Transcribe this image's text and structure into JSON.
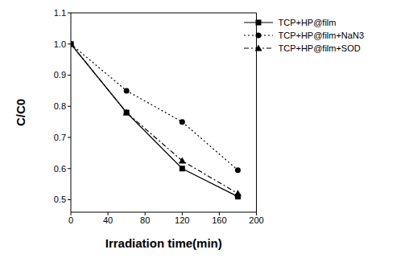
{
  "chart_data": {
    "type": "line",
    "x_label": "Irradiation time(min)",
    "y_label": "C/C0",
    "xlim": [
      0,
      200
    ],
    "xticks": [
      0,
      40,
      80,
      120,
      160,
      200
    ],
    "ylim": [
      0.46,
      1.1
    ],
    "yticks": [
      0.5,
      0.6,
      0.7,
      0.8,
      0.9,
      {
        "value": 1,
        "label": "1.0"
      },
      1.1
    ],
    "legend": "top-right",
    "grid": false,
    "x": [
      0,
      60,
      120,
      180
    ],
    "series": [
      {
        "name": "TCP+HP@film",
        "color": "#000000",
        "marker": "square",
        "line_style": "solid",
        "values": [
          1.0,
          0.78,
          0.6,
          0.51
        ]
      },
      {
        "name": "TCP+HP@film+NaN3",
        "color": "#000000",
        "marker": "circle",
        "line_style": "dotted",
        "values": [
          1.0,
          0.85,
          0.75,
          0.595
        ]
      },
      {
        "name": "TCP+HP@film+SOD",
        "color": "#000000",
        "marker": "triangle",
        "line_style": "dashdot",
        "values": [
          1.0,
          0.78,
          0.625,
          0.52
        ]
      }
    ]
  }
}
